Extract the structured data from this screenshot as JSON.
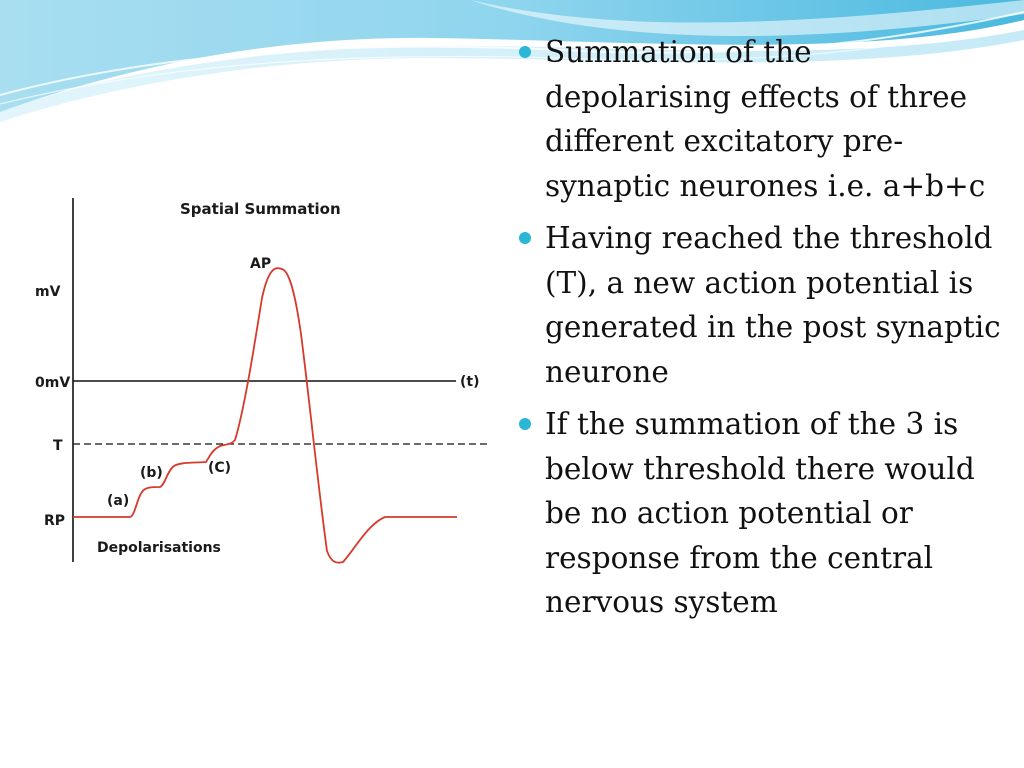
{
  "figure": {
    "title": "Spatial Summation",
    "labels": {
      "mv": "mV",
      "zero_mv": "0mV",
      "threshold": "T",
      "resting": "RP",
      "action_potential": "AP",
      "time": "(t)",
      "a": "(a)",
      "b": "(b)",
      "c": "(C)",
      "depolarisations": "Depolarisations"
    },
    "colors": {
      "trace": "#d63a2b",
      "axis": "#111111"
    }
  },
  "bullets": [
    {
      "text": "Summation of the depolarising effects of three different excitatory pre-synaptic neurones i.e. a+b+c"
    },
    {
      "text": "Having reached the threshold (T), a new action potential is generated in the post synaptic neurone"
    },
    {
      "text": "If the summation of the 3 is below threshold there would be no action potential or response from the central nervous system"
    }
  ],
  "theme": {
    "bullet_color": "#2bb6d6",
    "header_colors": [
      "#9fdcf0",
      "#5cc4e4",
      "#c9ecf7"
    ]
  }
}
